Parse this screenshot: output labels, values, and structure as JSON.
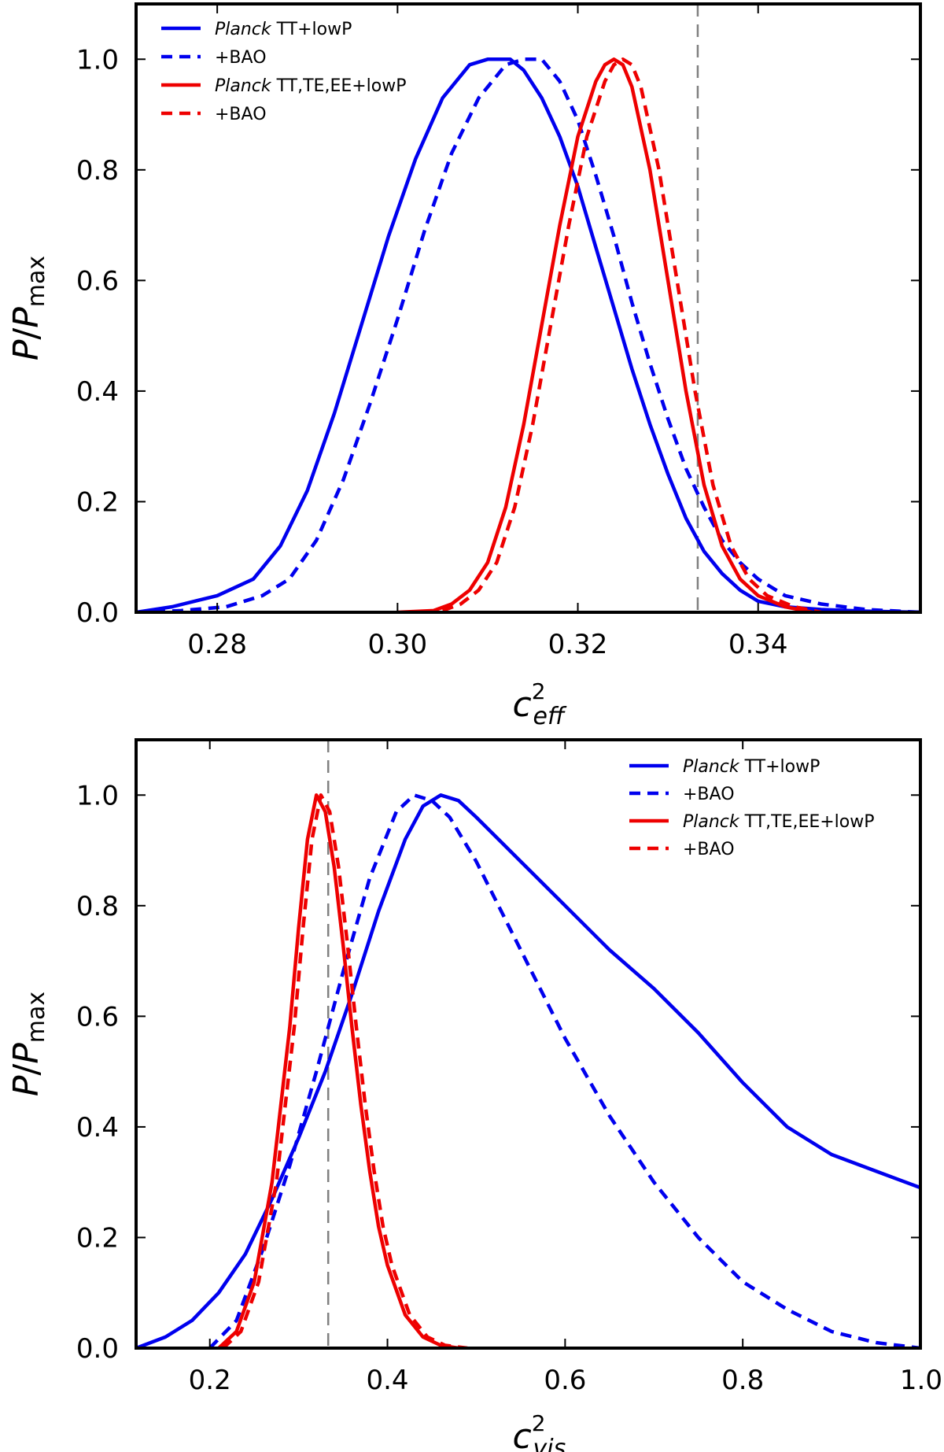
{
  "chart_data": [
    {
      "type": "line",
      "title": "",
      "ylabel_main": "P",
      "ylabel_sep": "/",
      "ylabel_main2": "P",
      "ylabel_sub": "max",
      "xlabel_main": "c",
      "xlabel_sup": "2",
      "xlabel_sub": "eff",
      "xlim": [
        0.271,
        0.358
      ],
      "ylim": [
        0.0,
        1.1
      ],
      "xticks": [
        0.28,
        0.3,
        0.32,
        0.34
      ],
      "xtick_labels": [
        "0.28",
        "0.30",
        "0.32",
        "0.34"
      ],
      "yticks": [
        0.0,
        0.2,
        0.4,
        0.6,
        0.8,
        1.0
      ],
      "ytick_labels": [
        "0.0",
        "0.2",
        "0.4",
        "0.6",
        "0.8",
        "1.0"
      ],
      "reference_line_x": 0.3333,
      "legend_position": "top-left",
      "legend": [
        {
          "italic": "Planck",
          "text": " TT+lowP",
          "color": "#0000ee",
          "dash": "solid"
        },
        {
          "italic": "",
          "text": "+BAO",
          "color": "#0000ee",
          "dash": "dashed"
        },
        {
          "italic": "Planck",
          "text": " TT,TE,EE+lowP",
          "color": "#ee0000",
          "dash": "solid"
        },
        {
          "italic": "",
          "text": "+BAO",
          "color": "#ee0000",
          "dash": "dashed"
        }
      ],
      "series": [
        {
          "name": "Planck TT+lowP",
          "color": "#0000ee",
          "dash": "solid",
          "x": [
            0.271,
            0.275,
            0.28,
            0.284,
            0.287,
            0.29,
            0.293,
            0.296,
            0.299,
            0.302,
            0.305,
            0.308,
            0.31,
            0.3125,
            0.314,
            0.316,
            0.318,
            0.32,
            0.322,
            0.324,
            0.326,
            0.328,
            0.33,
            0.332,
            0.334,
            0.336,
            0.338,
            0.34,
            0.343,
            0.347,
            0.352,
            0.358
          ],
          "y": [
            0.0,
            0.01,
            0.03,
            0.06,
            0.12,
            0.22,
            0.36,
            0.52,
            0.68,
            0.82,
            0.93,
            0.99,
            1.0,
            1.0,
            0.98,
            0.93,
            0.86,
            0.77,
            0.66,
            0.55,
            0.44,
            0.34,
            0.25,
            0.17,
            0.11,
            0.07,
            0.04,
            0.02,
            0.01,
            0.005,
            0.002,
            0.0
          ]
        },
        {
          "name": "+BAO",
          "color": "#0000ee",
          "dash": "dashed",
          "x": [
            0.271,
            0.276,
            0.281,
            0.285,
            0.288,
            0.291,
            0.294,
            0.297,
            0.3,
            0.303,
            0.306,
            0.309,
            0.312,
            0.314,
            0.316,
            0.318,
            0.32,
            0.322,
            0.324,
            0.326,
            0.328,
            0.33,
            0.332,
            0.334,
            0.336,
            0.338,
            0.34,
            0.343,
            0.347,
            0.352,
            0.358
          ],
          "y": [
            0.0,
            0.003,
            0.01,
            0.03,
            0.06,
            0.13,
            0.24,
            0.38,
            0.53,
            0.69,
            0.83,
            0.93,
            0.99,
            1.0,
            1.0,
            0.96,
            0.89,
            0.79,
            0.68,
            0.56,
            0.45,
            0.35,
            0.26,
            0.19,
            0.13,
            0.09,
            0.06,
            0.03,
            0.015,
            0.005,
            0.0
          ]
        },
        {
          "name": "Planck TT,TE,EE+lowP",
          "color": "#ee0000",
          "dash": "solid",
          "x": [
            0.3,
            0.304,
            0.306,
            0.308,
            0.31,
            0.312,
            0.314,
            0.316,
            0.318,
            0.32,
            0.322,
            0.323,
            0.324,
            0.325,
            0.326,
            0.328,
            0.33,
            0.332,
            0.334,
            0.336,
            0.338,
            0.34,
            0.343,
            0.346
          ],
          "y": [
            0.0,
            0.003,
            0.015,
            0.04,
            0.09,
            0.19,
            0.34,
            0.52,
            0.7,
            0.86,
            0.96,
            0.99,
            1.0,
            0.99,
            0.95,
            0.8,
            0.6,
            0.4,
            0.23,
            0.12,
            0.06,
            0.03,
            0.01,
            0.0
          ]
        },
        {
          "name": "+BAO",
          "color": "#ee0000",
          "dash": "dashed",
          "x": [
            0.301,
            0.305,
            0.307,
            0.309,
            0.311,
            0.313,
            0.315,
            0.317,
            0.319,
            0.321,
            0.323,
            0.324,
            0.325,
            0.326,
            0.327,
            0.329,
            0.331,
            0.333,
            0.335,
            0.337,
            0.339,
            0.341,
            0.344,
            0.347
          ],
          "y": [
            0.0,
            0.003,
            0.015,
            0.04,
            0.09,
            0.19,
            0.34,
            0.52,
            0.7,
            0.86,
            0.96,
            0.99,
            1.0,
            0.99,
            0.95,
            0.8,
            0.6,
            0.4,
            0.23,
            0.12,
            0.06,
            0.03,
            0.01,
            0.0
          ]
        }
      ]
    },
    {
      "type": "line",
      "title": "",
      "ylabel_main": "P",
      "ylabel_sep": "/",
      "ylabel_main2": "P",
      "ylabel_sub": "max",
      "xlabel_main": "c",
      "xlabel_sup": "2",
      "xlabel_sub": "vis",
      "xlim": [
        0.117,
        1.0
      ],
      "ylim": [
        0.0,
        1.1
      ],
      "xticks": [
        0.2,
        0.4,
        0.6,
        0.8,
        1.0
      ],
      "xtick_labels": [
        "0.2",
        "0.4",
        "0.6",
        "0.8",
        "1.0"
      ],
      "yticks": [
        0.0,
        0.2,
        0.4,
        0.6,
        0.8,
        1.0
      ],
      "ytick_labels": [
        "0.0",
        "0.2",
        "0.4",
        "0.6",
        "0.8",
        "1.0"
      ],
      "reference_line_x": 0.3333,
      "legend_position": "top-right",
      "legend": [
        {
          "italic": "Planck",
          "text": " TT+lowP",
          "color": "#0000ee",
          "dash": "solid"
        },
        {
          "italic": "",
          "text": "+BAO",
          "color": "#0000ee",
          "dash": "dashed"
        },
        {
          "italic": "Planck",
          "text": " TT,TE,EE+lowP",
          "color": "#ee0000",
          "dash": "solid"
        },
        {
          "italic": "",
          "text": "+BAO",
          "color": "#ee0000",
          "dash": "dashed"
        }
      ],
      "series": [
        {
          "name": "Planck TT+lowP",
          "color": "#0000ee",
          "dash": "solid",
          "x": [
            0.117,
            0.15,
            0.18,
            0.21,
            0.24,
            0.27,
            0.3,
            0.33,
            0.36,
            0.39,
            0.42,
            0.44,
            0.46,
            0.48,
            0.5,
            0.55,
            0.6,
            0.65,
            0.7,
            0.75,
            0.8,
            0.85,
            0.9,
            0.95,
            1.0
          ],
          "y": [
            0.0,
            0.02,
            0.05,
            0.1,
            0.17,
            0.27,
            0.38,
            0.5,
            0.64,
            0.79,
            0.92,
            0.98,
            1.0,
            0.99,
            0.96,
            0.88,
            0.8,
            0.72,
            0.65,
            0.57,
            0.48,
            0.4,
            0.35,
            0.32,
            0.29
          ]
        },
        {
          "name": "+BAO",
          "color": "#0000ee",
          "dash": "dashed",
          "x": [
            0.2,
            0.23,
            0.26,
            0.29,
            0.32,
            0.35,
            0.38,
            0.41,
            0.43,
            0.45,
            0.47,
            0.5,
            0.55,
            0.6,
            0.65,
            0.7,
            0.75,
            0.8,
            0.85,
            0.9,
            0.95,
            1.0
          ],
          "y": [
            0.0,
            0.05,
            0.18,
            0.33,
            0.5,
            0.68,
            0.85,
            0.97,
            1.0,
            0.99,
            0.96,
            0.88,
            0.72,
            0.56,
            0.42,
            0.3,
            0.2,
            0.12,
            0.07,
            0.03,
            0.01,
            0.0
          ]
        },
        {
          "name": "Planck TT,TE,EE+lowP",
          "color": "#ee0000",
          "dash": "solid",
          "x": [
            0.21,
            0.23,
            0.25,
            0.27,
            0.29,
            0.3,
            0.31,
            0.32,
            0.33,
            0.34,
            0.35,
            0.36,
            0.37,
            0.38,
            0.39,
            0.4,
            0.42,
            0.44,
            0.46,
            0.48
          ],
          "y": [
            0.0,
            0.03,
            0.12,
            0.3,
            0.58,
            0.76,
            0.92,
            1.0,
            0.97,
            0.87,
            0.73,
            0.58,
            0.44,
            0.32,
            0.22,
            0.15,
            0.06,
            0.02,
            0.005,
            0.0
          ]
        },
        {
          "name": "+BAO",
          "color": "#ee0000",
          "dash": "dashed",
          "x": [
            0.215,
            0.235,
            0.255,
            0.275,
            0.295,
            0.305,
            0.315,
            0.325,
            0.335,
            0.345,
            0.355,
            0.365,
            0.375,
            0.385,
            0.395,
            0.405,
            0.425,
            0.445,
            0.465,
            0.49
          ],
          "y": [
            0.0,
            0.03,
            0.12,
            0.3,
            0.58,
            0.76,
            0.92,
            1.0,
            0.97,
            0.87,
            0.73,
            0.58,
            0.44,
            0.32,
            0.22,
            0.15,
            0.06,
            0.02,
            0.005,
            0.0
          ]
        }
      ]
    }
  ]
}
